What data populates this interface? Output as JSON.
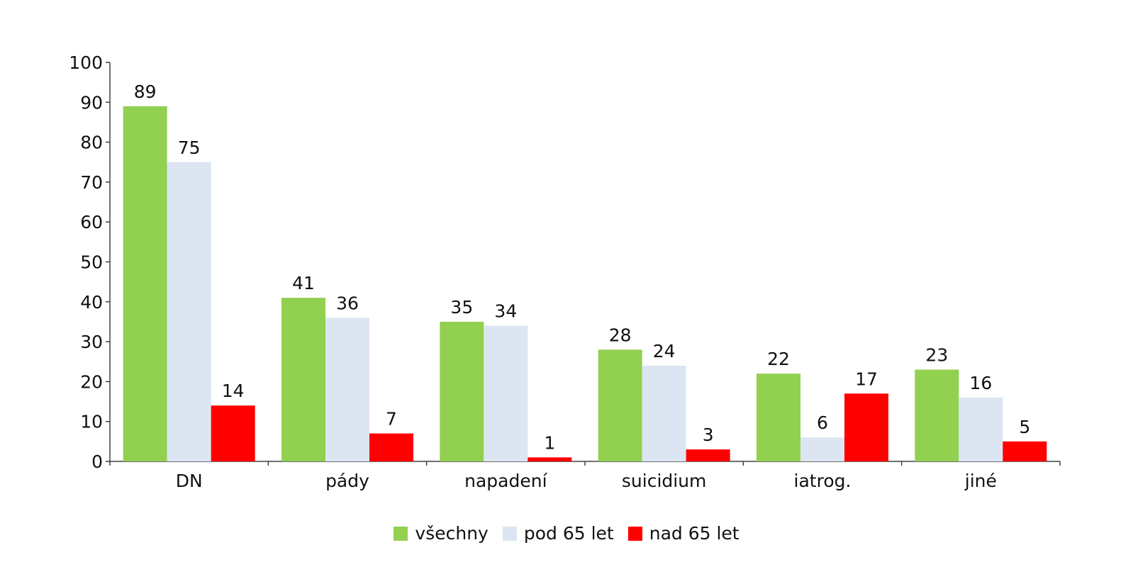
{
  "chart_data": {
    "type": "bar",
    "categories": [
      "DN",
      "pády",
      "napadení",
      "suicidium",
      "iatrog.",
      "jiné"
    ],
    "series": [
      {
        "name": "všechny",
        "values": [
          89,
          41,
          35,
          28,
          22,
          23
        ],
        "color": "#92d050"
      },
      {
        "name": "pod 65 let",
        "values": [
          75,
          36,
          34,
          24,
          6,
          16
        ],
        "color": "#dce6f2"
      },
      {
        "name": "nad 65 let",
        "values": [
          14,
          7,
          1,
          3,
          17,
          5
        ],
        "color": "#ff0000"
      }
    ],
    "ylim": [
      0,
      100
    ],
    "yticks": [
      0,
      10,
      20,
      30,
      40,
      50,
      60,
      70,
      80,
      90,
      100
    ],
    "grid": false,
    "legend_position": "bottom"
  }
}
